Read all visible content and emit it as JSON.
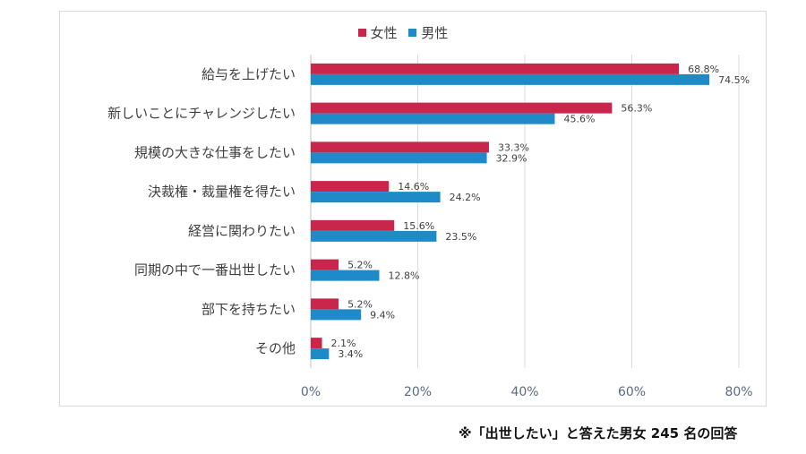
{
  "chart_data": {
    "type": "bar",
    "orientation": "horizontal",
    "categories": [
      "給与を上げたい",
      "新しいことにチャレンジしたい",
      "規模の大きな仕事をしたい",
      "決裁権・裁量権を得たい",
      "経営に関わりたい",
      "同期の中で一番出世したい",
      "部下を持ちたい",
      "その他"
    ],
    "series": [
      {
        "name": "女性",
        "color": "#c8264a",
        "values": [
          68.8,
          56.3,
          33.3,
          14.6,
          15.6,
          5.2,
          5.2,
          2.1
        ],
        "labels": [
          "68.8%",
          "56.3%",
          "33.3%",
          "14.6%",
          "15.6%",
          "5.2%",
          "5.2%",
          "2.1%"
        ]
      },
      {
        "name": "男性",
        "color": "#1f8ac8",
        "values": [
          74.5,
          45.6,
          32.9,
          24.2,
          23.5,
          12.8,
          9.4,
          3.4
        ],
        "labels": [
          "74.5%",
          "45.6%",
          "32.9%",
          "24.2%",
          "23.5%",
          "12.8%",
          "9.4%",
          "3.4%"
        ]
      }
    ],
    "xlim": [
      0,
      80
    ],
    "xticks": [
      "0%",
      "20%",
      "40%",
      "60%",
      "80%"
    ],
    "grid": true,
    "legend_position": "top-center"
  },
  "footnote": "※「出世したい」と答えた男女 245 名の回答"
}
